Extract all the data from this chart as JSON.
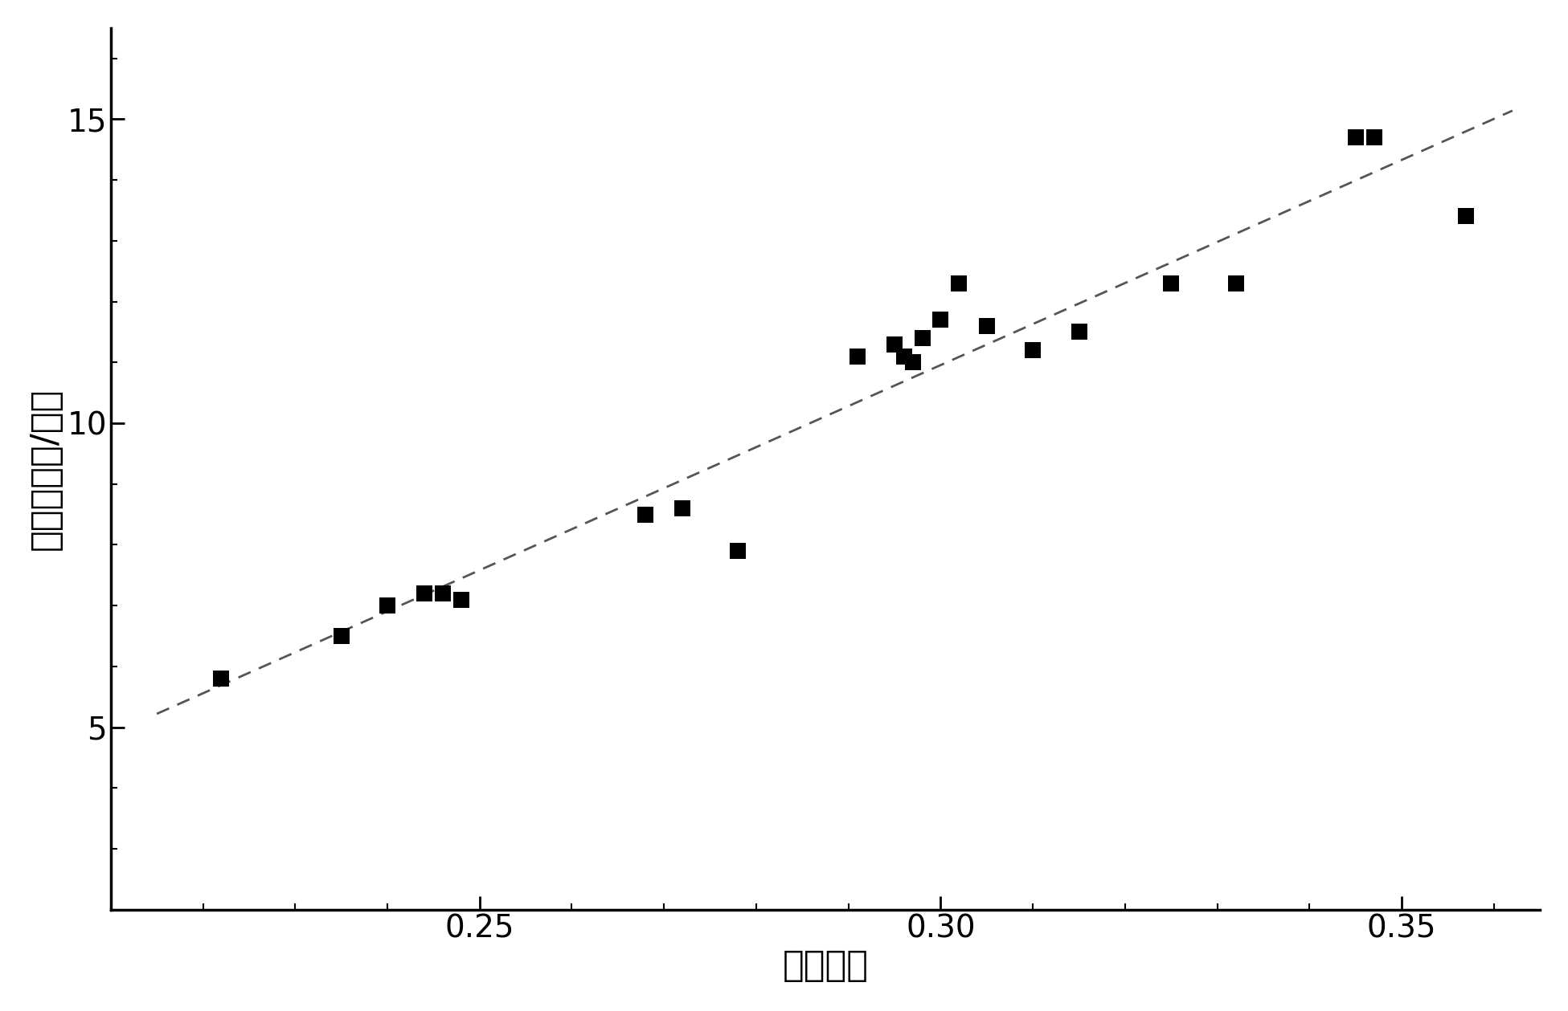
{
  "scatter_x": [
    0.222,
    0.235,
    0.24,
    0.244,
    0.246,
    0.246,
    0.248,
    0.268,
    0.272,
    0.278,
    0.291,
    0.295,
    0.296,
    0.297,
    0.298,
    0.3,
    0.302,
    0.305,
    0.31,
    0.315,
    0.325,
    0.332,
    0.345,
    0.347,
    0.357
  ],
  "scatter_y": [
    5.8,
    6.5,
    7.0,
    7.2,
    7.2,
    7.2,
    7.1,
    8.5,
    8.6,
    7.9,
    11.1,
    11.3,
    11.1,
    11.0,
    11.4,
    11.7,
    12.3,
    11.6,
    11.2,
    11.5,
    12.3,
    12.3,
    14.7,
    14.7,
    13.4
  ],
  "line_x_start": 0.215,
  "line_x_end": 0.362,
  "xlabel": "相对强度",
  "ylabel": "浓度（摩尔/升）",
  "xlim": [
    0.21,
    0.365
  ],
  "ylim": [
    2.0,
    16.5
  ],
  "xticks": [
    0.25,
    0.3,
    0.35
  ],
  "yticks": [
    5,
    10,
    15
  ],
  "marker_color": "#000000",
  "line_color": "#555555",
  "background_color": "#ffffff",
  "xlabel_fontsize": 32,
  "ylabel_fontsize": 32,
  "tick_fontsize": 28,
  "spine_linewidth": 2.5
}
